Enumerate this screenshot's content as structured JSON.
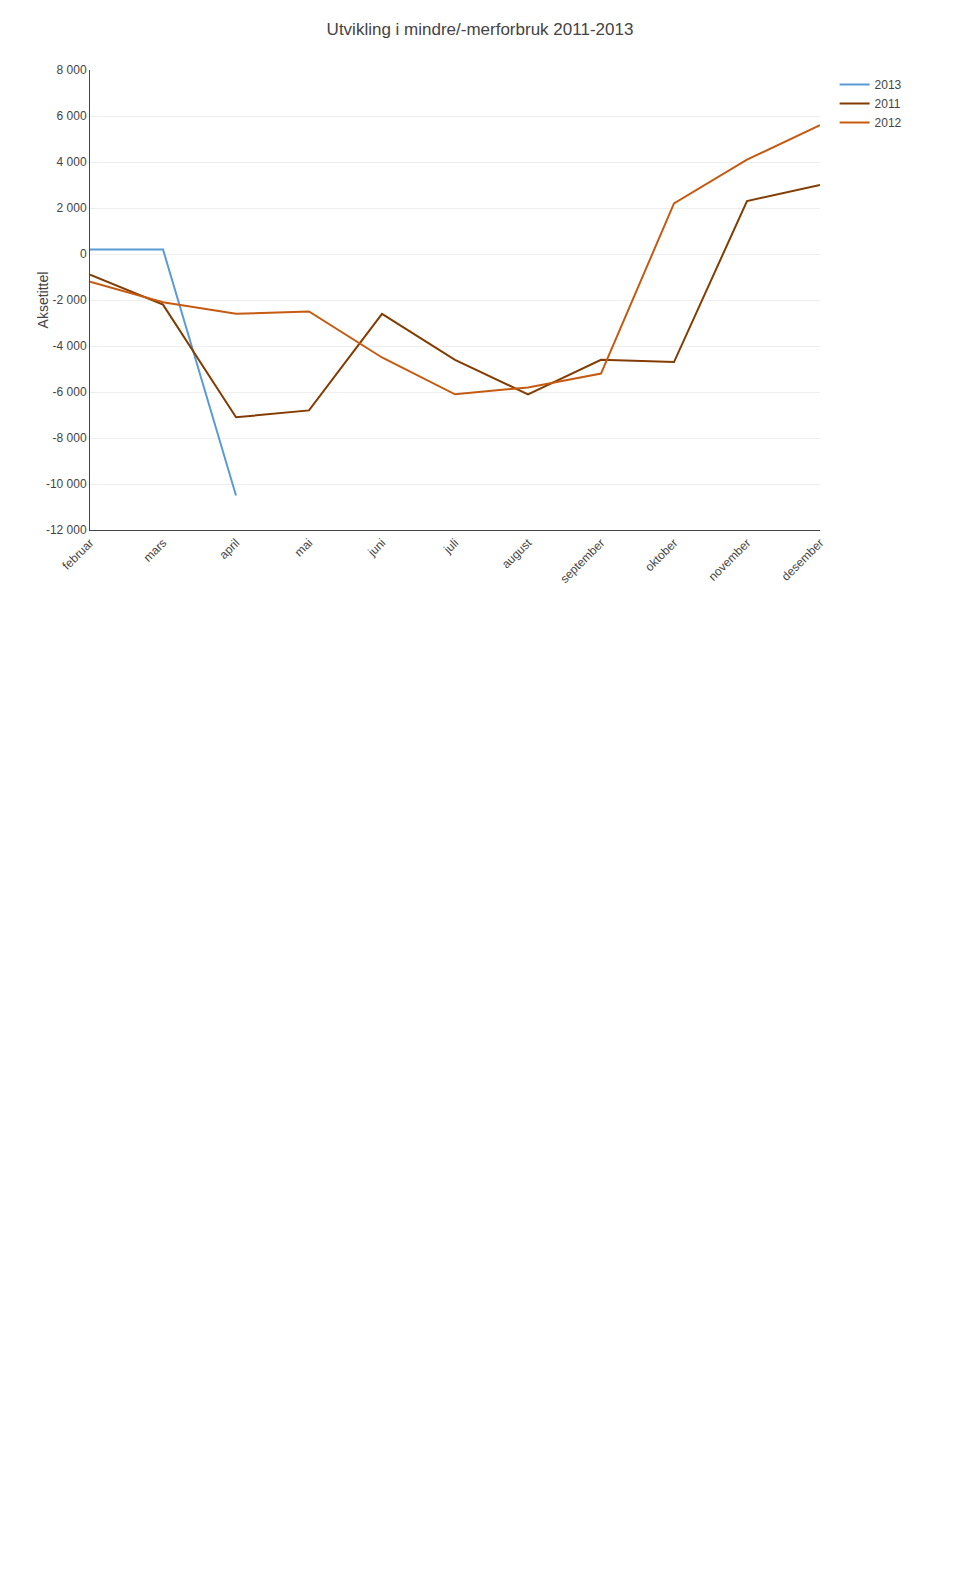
{
  "chart_data": {
    "type": "line",
    "title": "Utvikling i mindre/-merforbruk 2011-2013",
    "y_label": "Aksetittel",
    "categories": [
      "februar",
      "mars",
      "april",
      "mai",
      "juni",
      "juli",
      "august",
      "september",
      "oktober",
      "november",
      "desember"
    ],
    "series": [
      {
        "name": "2013",
        "color": "#5B9BD5",
        "values": [
          200,
          200,
          -10500,
          null,
          null,
          null,
          null,
          null,
          null,
          null,
          null
        ]
      },
      {
        "name": "2011",
        "color": "#833C00",
        "values": [
          -900,
          -2200,
          -7100,
          -6800,
          -2600,
          -4600,
          -6100,
          -4600,
          -4700,
          2300,
          3000
        ]
      },
      {
        "name": "2012",
        "color": "#C55A11",
        "values": [
          -1200,
          -2100,
          -2600,
          -2500,
          -4500,
          -6100,
          -5800,
          -5200,
          2200,
          4100,
          5600
        ]
      }
    ],
    "ylim": [
      -12000,
      8000
    ],
    "yticks": [
      {
        "value": -12000,
        "label": "-12 000"
      },
      {
        "value": -10000,
        "label": "-10 000"
      },
      {
        "value": -8000,
        "label": "-8 000"
      },
      {
        "value": -6000,
        "label": "-6 000"
      },
      {
        "value": -4000,
        "label": "-4 000"
      },
      {
        "value": -2000,
        "label": "-2 000"
      },
      0,
      {
        "value": 2000,
        "label": "2 000"
      },
      {
        "value": 4000,
        "label": "4 000"
      },
      {
        "value": 6000,
        "label": "6 000"
      },
      {
        "value": 8000,
        "label": "8 000"
      }
    ],
    "grid": true,
    "legend": "right"
  }
}
